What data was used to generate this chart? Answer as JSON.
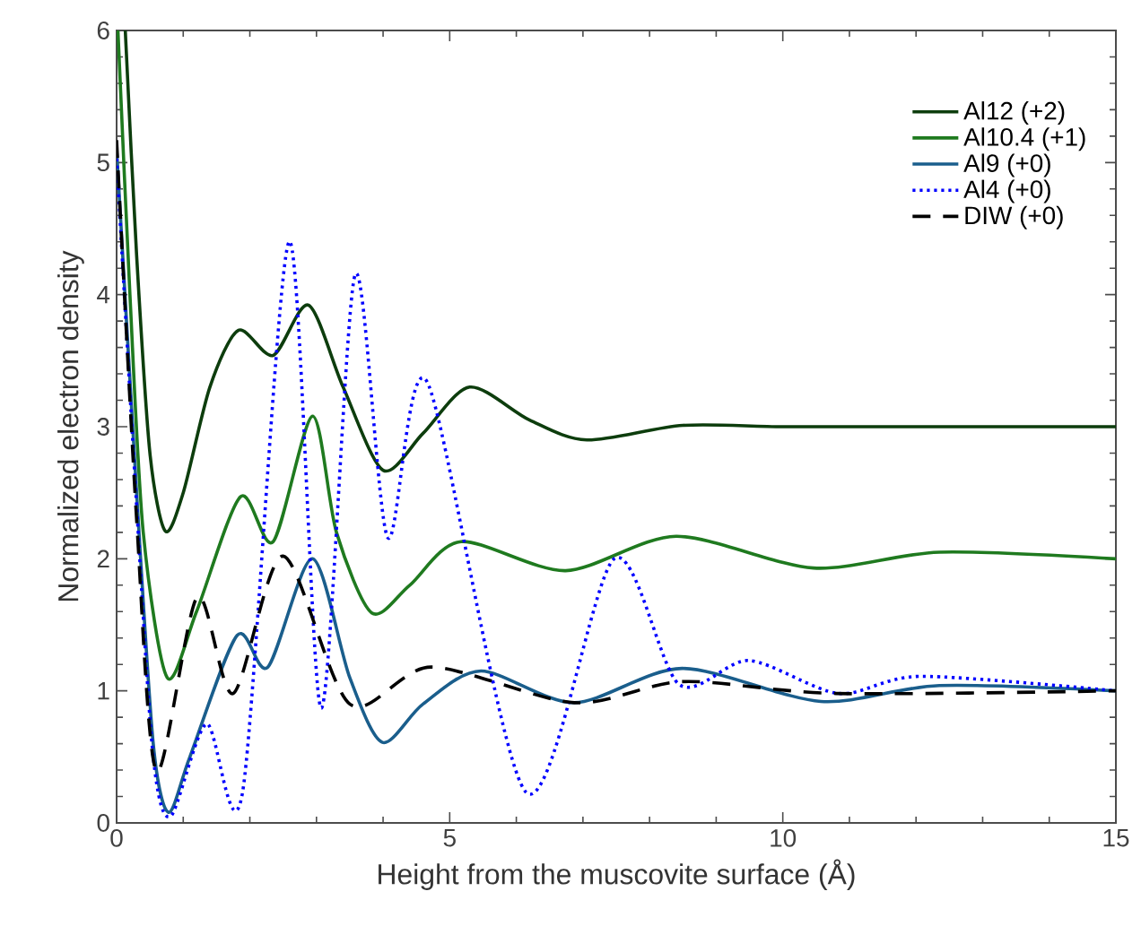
{
  "chart_data": {
    "type": "line",
    "xlabel": "Height from the muscovite surface (Å)",
    "ylabel": "Normalized electron density",
    "xlim": [
      0,
      15
    ],
    "ylim": [
      0,
      6
    ],
    "xticks": [
      0,
      5,
      10,
      15
    ],
    "yticks": [
      0,
      1,
      2,
      3,
      4,
      5,
      6
    ],
    "grid": false,
    "legend": "top right",
    "marker": "none",
    "series": [
      {
        "name": "Al12 (+2)",
        "color": "#0d3d0d",
        "line_style": "solid",
        "x": [
          0.13,
          0.3,
          0.5,
          0.73,
          1.0,
          1.4,
          1.83,
          2.35,
          2.88,
          3.4,
          4.0,
          4.6,
          5.3,
          6.2,
          7.06,
          8.5,
          10,
          12,
          15
        ],
        "values": [
          6.0,
          4.3,
          2.8,
          2.21,
          2.5,
          3.3,
          3.73,
          3.54,
          3.92,
          3.3,
          2.67,
          2.95,
          3.3,
          3.05,
          2.9,
          3.01,
          3.0,
          3.0,
          3.0
        ]
      },
      {
        "name": "Al10.4 (+1)",
        "color": "#1f7a1f",
        "line_style": "solid",
        "x": [
          0.02,
          0.2,
          0.4,
          0.76,
          1.2,
          1.86,
          2.35,
          2.94,
          3.3,
          3.83,
          4.4,
          5.17,
          6.74,
          8.4,
          10.46,
          12.35,
          15
        ],
        "values": [
          6.0,
          4.0,
          2.2,
          1.1,
          1.6,
          2.47,
          2.13,
          3.08,
          2.2,
          1.59,
          1.8,
          2.13,
          1.91,
          2.17,
          1.93,
          2.05,
          2.0
        ]
      },
      {
        "name": "Al9 (+0)",
        "color": "#1a5e8c",
        "line_style": "solid",
        "x": [
          0,
          0.3,
          0.55,
          0.78,
          1.1,
          1.81,
          2.27,
          2.94,
          3.5,
          3.99,
          4.6,
          5.47,
          6.87,
          8.49,
          10.57,
          12.35,
          15
        ],
        "values": [
          5.1,
          2.5,
          0.6,
          0.08,
          0.5,
          1.42,
          1.18,
          2.0,
          1.1,
          0.61,
          0.9,
          1.15,
          0.91,
          1.17,
          0.92,
          1.04,
          1.0
        ]
      },
      {
        "name": "Al4 (+0)",
        "color": "#0000ff",
        "line_style": "dotted",
        "x": [
          0,
          0.3,
          0.55,
          0.81,
          1.35,
          1.89,
          2.59,
          3.07,
          3.58,
          4.07,
          4.66,
          6.15,
          7.47,
          8.44,
          9.49,
          10.84,
          12.08,
          15
        ],
        "values": [
          5.03,
          2.4,
          0.5,
          0.05,
          0.75,
          0.23,
          4.4,
          0.87,
          4.15,
          2.16,
          3.34,
          0.23,
          2.0,
          1.05,
          1.23,
          0.98,
          1.11,
          1.0
        ]
      },
      {
        "name": "DIW (+0)",
        "color": "#000000",
        "line_style": "dashed",
        "x": [
          0,
          0.3,
          0.6,
          1.21,
          1.75,
          2.5,
          3.5,
          4.72,
          6.87,
          8.5,
          10.8,
          15
        ],
        "values": [
          5.17,
          2.3,
          0.39,
          1.71,
          0.98,
          2.02,
          0.9,
          1.18,
          0.91,
          1.07,
          0.98,
          1.0
        ]
      }
    ]
  }
}
